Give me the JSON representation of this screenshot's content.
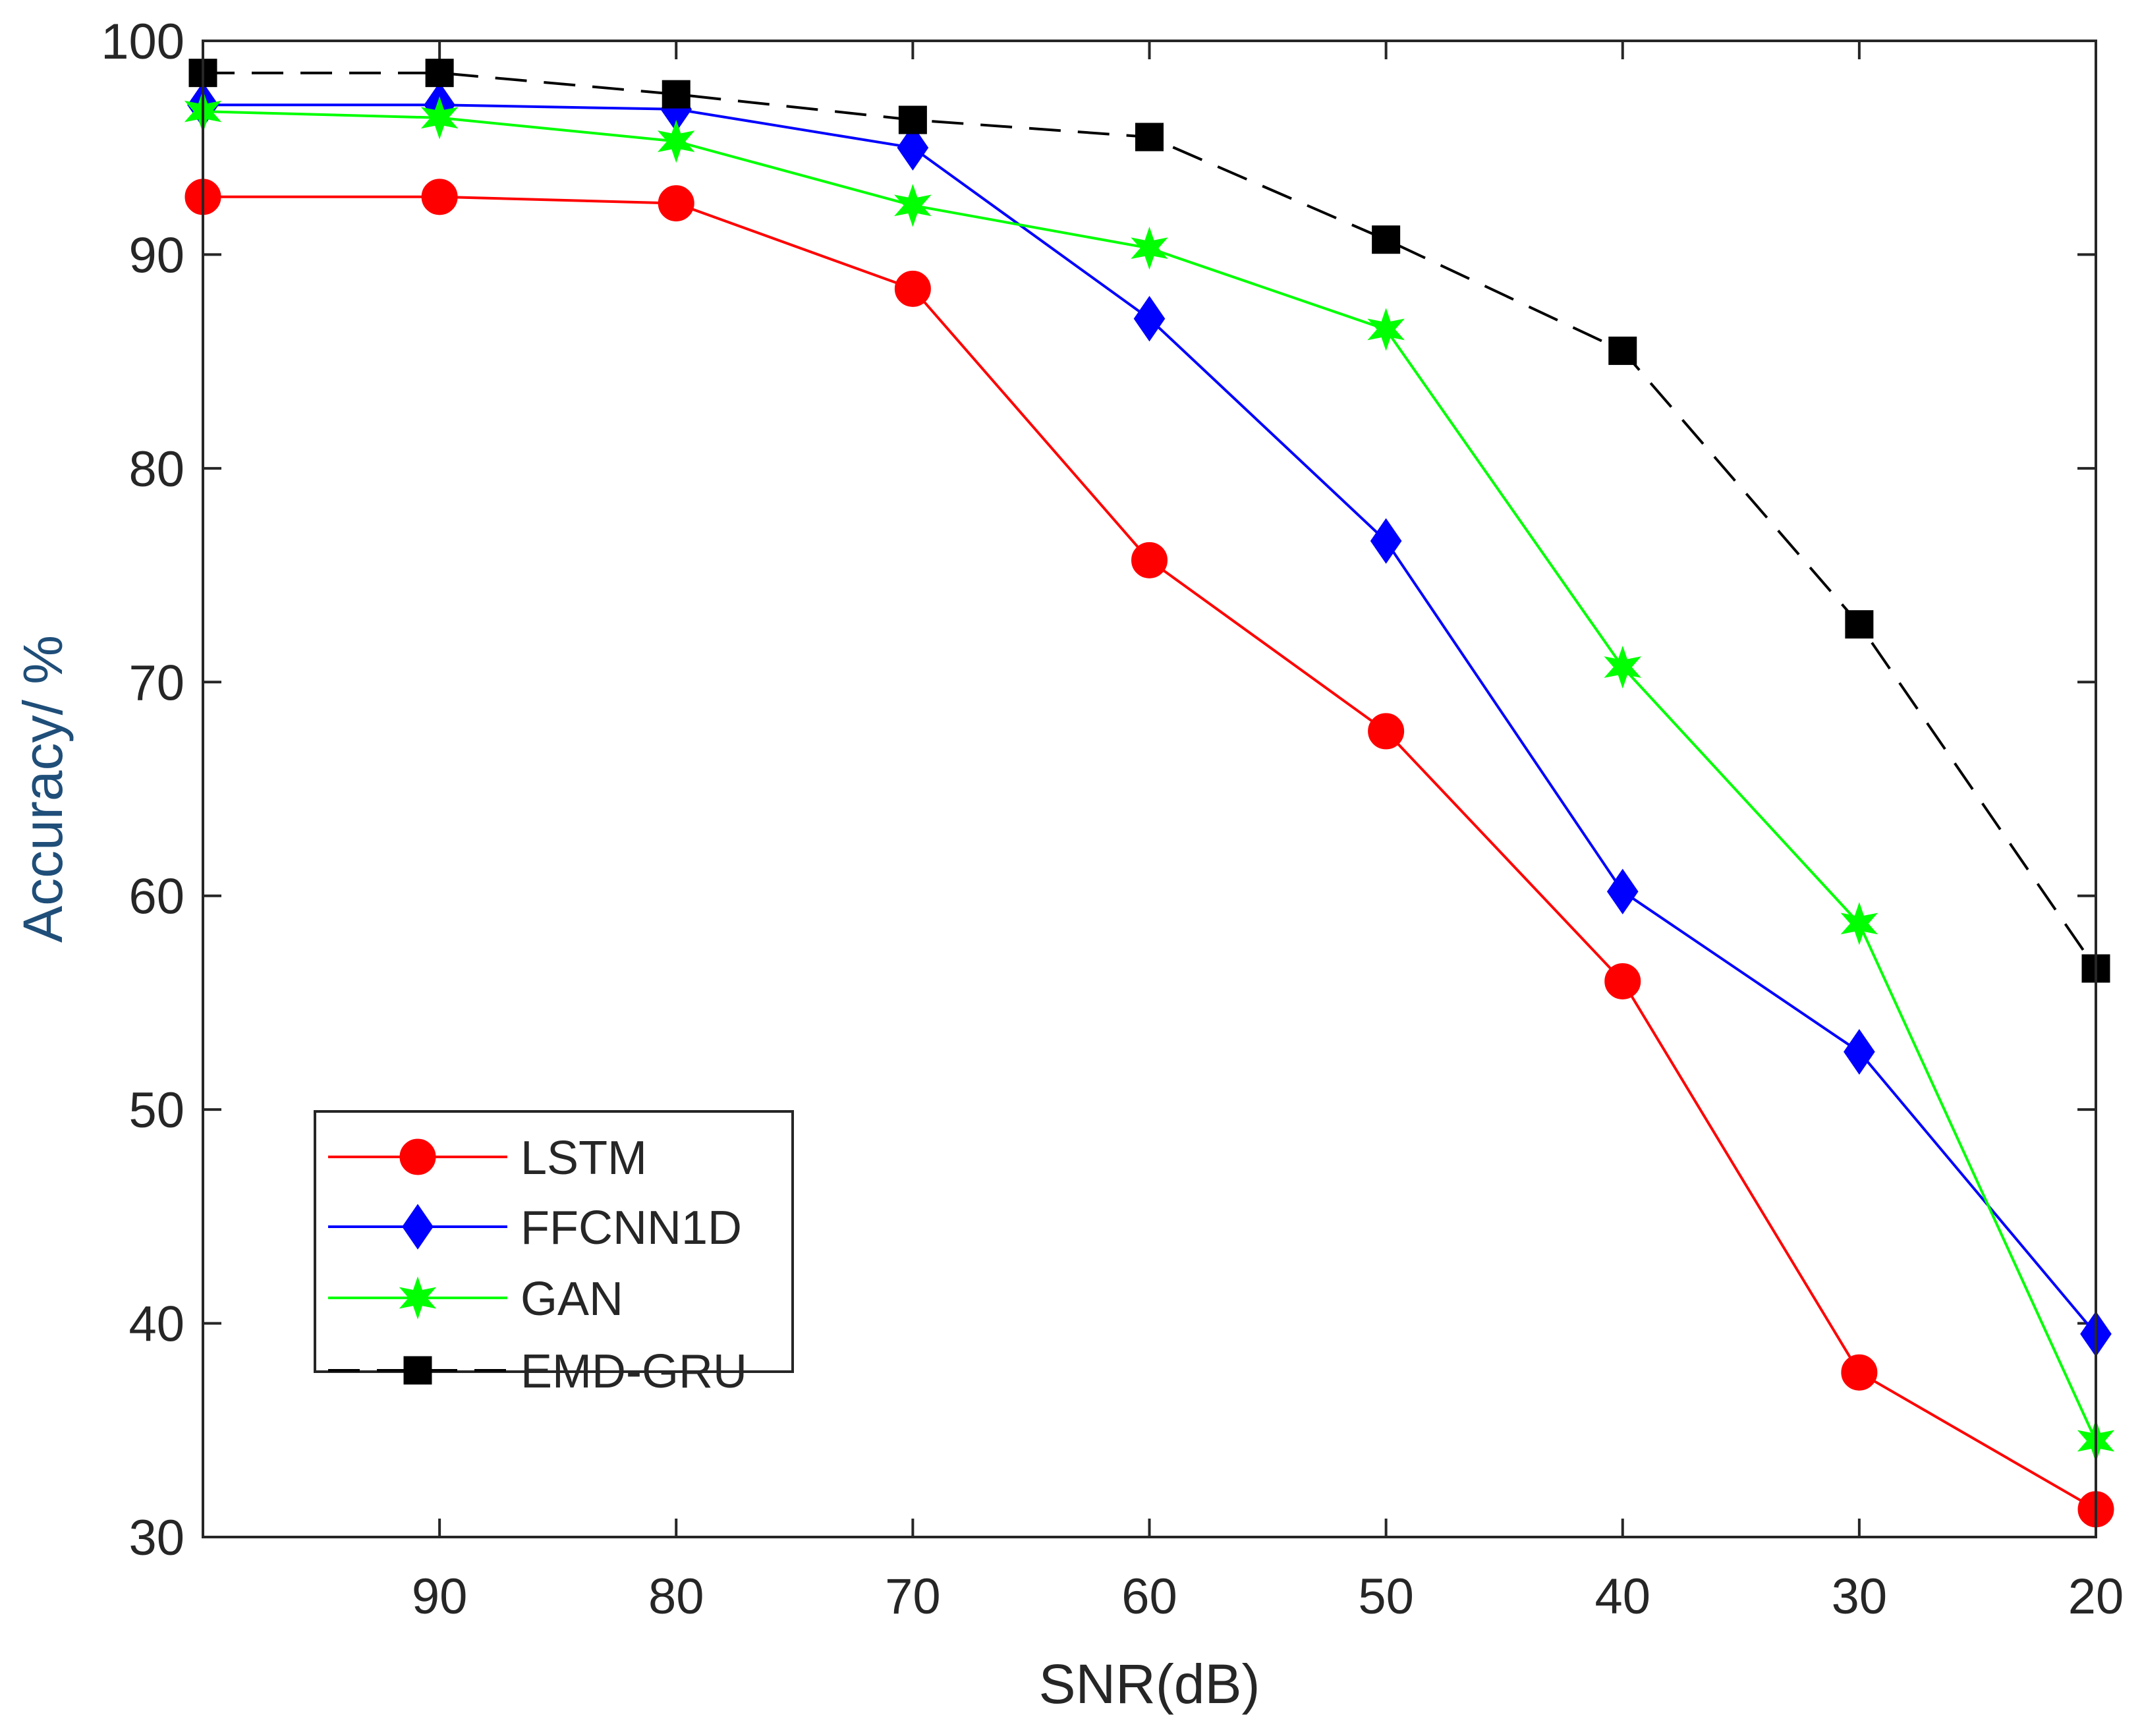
{
  "chart_data": {
    "type": "line",
    "title": "",
    "xlabel": "SNR(dB)",
    "ylabel": "Accuracy/ %",
    "x_reversed": true,
    "xlim": [
      100,
      20
    ],
    "ylim": [
      30,
      100
    ],
    "x_ticks": [
      90,
      80,
      70,
      60,
      50,
      40,
      30,
      20
    ],
    "y_ticks": [
      30,
      40,
      50,
      60,
      70,
      80,
      90,
      100
    ],
    "x": [
      100,
      90,
      80,
      70,
      60,
      50,
      40,
      30,
      20
    ],
    "legend_position": "lower-left",
    "grid": false,
    "series": [
      {
        "name": "LSTM",
        "color": "#ff0000",
        "marker": "circle",
        "line_style": "solid",
        "values": [
          92.7,
          92.7,
          92.4,
          88.4,
          75.7,
          67.7,
          56.0,
          37.7,
          31.3
        ]
      },
      {
        "name": "FFCNN1D",
        "color": "#0000ff",
        "marker": "diamond",
        "line_style": "solid",
        "values": [
          97.0,
          97.0,
          96.8,
          95.0,
          87.0,
          76.6,
          60.2,
          52.7,
          39.5
        ]
      },
      {
        "name": "GAN",
        "color": "#00ff00",
        "marker": "star",
        "line_style": "solid",
        "values": [
          96.7,
          96.4,
          95.3,
          92.3,
          90.3,
          86.5,
          70.7,
          58.7,
          34.5
        ]
      },
      {
        "name": "EMD-GRU",
        "color": "#000000",
        "marker": "square",
        "line_style": "dashed",
        "values": [
          98.5,
          98.5,
          97.5,
          96.3,
          95.5,
          90.7,
          85.5,
          72.7,
          56.6
        ]
      }
    ]
  }
}
